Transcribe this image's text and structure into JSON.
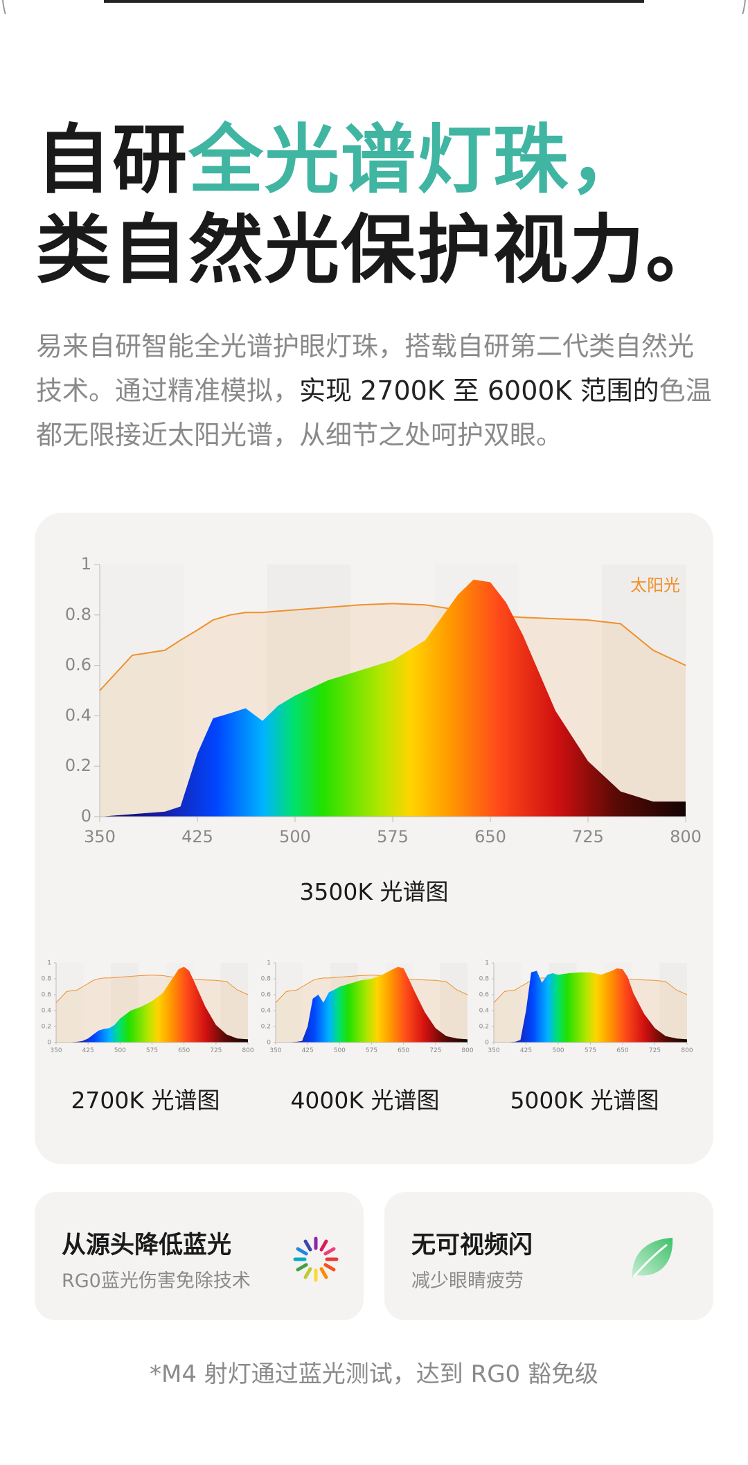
{
  "headline": {
    "line1": [
      "自研",
      "全光谱灯珠，"
    ],
    "line2": "类自然光保护视力。"
  },
  "description": [
    "易来自研智能全光谱护眼灯珠，搭载自研第二代类自然光技术。通过精准模拟，",
    "实现 2700K 至 6000K 范围的",
    "色温都无限接近太阳光谱，从细节之处呵护双眼。"
  ],
  "chart_data": [
    {
      "type": "area",
      "title": "3500K 光谱图",
      "x": [
        350,
        375,
        400,
        412,
        425,
        437,
        450,
        462,
        475,
        487,
        500,
        525,
        550,
        575,
        600,
        625,
        637,
        650,
        662,
        675,
        700,
        725,
        750,
        775,
        800
      ],
      "series": [
        {
          "name": "太阳光",
          "color": "#f0902c",
          "values": [
            0.5,
            0.64,
            0.66,
            0.7,
            0.74,
            0.78,
            0.8,
            0.81,
            0.81,
            0.815,
            0.82,
            0.83,
            0.84,
            0.845,
            0.84,
            0.82,
            0.81,
            0.8,
            0.795,
            0.79,
            0.785,
            0.78,
            0.765,
            0.66,
            0.6
          ]
        },
        {
          "values": [
            0,
            0.01,
            0.02,
            0.04,
            0.25,
            0.39,
            0.41,
            0.43,
            0.38,
            0.44,
            0.48,
            0.54,
            0.58,
            0.62,
            0.7,
            0.88,
            0.94,
            0.93,
            0.85,
            0.72,
            0.42,
            0.22,
            0.1,
            0.06,
            0.06
          ]
        }
      ],
      "xlim": [
        350,
        800
      ],
      "ylim": [
        0,
        1
      ],
      "xticks": [
        350,
        425,
        500,
        575,
        650,
        725,
        800
      ],
      "yticks": [
        0,
        0.2,
        0.4,
        0.6,
        0.8,
        1
      ]
    },
    {
      "type": "area",
      "title": "2700K 光谱图",
      "x": [
        350,
        375,
        400,
        412,
        425,
        437,
        450,
        462,
        475,
        487,
        500,
        525,
        550,
        575,
        600,
        625,
        637,
        650,
        662,
        675,
        700,
        725,
        750,
        775,
        800
      ],
      "series": [
        {
          "color": "#f0902c",
          "values": [
            0.5,
            0.64,
            0.66,
            0.7,
            0.74,
            0.78,
            0.8,
            0.81,
            0.81,
            0.815,
            0.82,
            0.83,
            0.84,
            0.845,
            0.84,
            0.82,
            0.81,
            0.8,
            0.795,
            0.79,
            0.785,
            0.78,
            0.765,
            0.66,
            0.6
          ]
        },
        {
          "values": [
            0,
            0,
            0.01,
            0.02,
            0.05,
            0.1,
            0.15,
            0.17,
            0.18,
            0.22,
            0.3,
            0.4,
            0.45,
            0.52,
            0.62,
            0.82,
            0.92,
            0.95,
            0.9,
            0.75,
            0.45,
            0.22,
            0.1,
            0.05,
            0.04
          ]
        }
      ],
      "xlim": [
        350,
        800
      ],
      "ylim": [
        0,
        1
      ],
      "xticks": [
        350,
        425,
        500,
        575,
        650,
        725,
        800
      ],
      "yticks": [
        0,
        0.2,
        0.4,
        0.6,
        0.8,
        1
      ]
    },
    {
      "type": "area",
      "title": "4000K 光谱图",
      "x": [
        350,
        375,
        400,
        412,
        425,
        437,
        450,
        462,
        475,
        487,
        500,
        525,
        550,
        575,
        600,
        625,
        637,
        650,
        662,
        675,
        700,
        725,
        750,
        775,
        800
      ],
      "series": [
        {
          "color": "#f0902c",
          "values": [
            0.5,
            0.64,
            0.66,
            0.7,
            0.74,
            0.78,
            0.8,
            0.81,
            0.81,
            0.815,
            0.82,
            0.83,
            0.84,
            0.845,
            0.84,
            0.82,
            0.81,
            0.8,
            0.795,
            0.79,
            0.785,
            0.78,
            0.765,
            0.66,
            0.6
          ]
        },
        {
          "values": [
            0,
            0,
            0.01,
            0.02,
            0.2,
            0.55,
            0.6,
            0.5,
            0.63,
            0.66,
            0.7,
            0.74,
            0.78,
            0.8,
            0.85,
            0.92,
            0.95,
            0.93,
            0.8,
            0.65,
            0.38,
            0.18,
            0.08,
            0.05,
            0.04
          ]
        }
      ],
      "xlim": [
        350,
        800
      ],
      "ylim": [
        0,
        1
      ],
      "xticks": [
        350,
        425,
        500,
        575,
        650,
        725,
        800
      ],
      "yticks": [
        0,
        0.2,
        0.4,
        0.6,
        0.8,
        1
      ]
    },
    {
      "type": "area",
      "title": "5000K 光谱图",
      "x": [
        350,
        375,
        400,
        412,
        425,
        437,
        450,
        462,
        475,
        487,
        500,
        525,
        550,
        575,
        600,
        625,
        637,
        650,
        662,
        675,
        700,
        725,
        750,
        775,
        800
      ],
      "series": [
        {
          "color": "#f0902c",
          "values": [
            0.5,
            0.64,
            0.66,
            0.7,
            0.74,
            0.78,
            0.8,
            0.81,
            0.81,
            0.815,
            0.82,
            0.83,
            0.84,
            0.845,
            0.84,
            0.82,
            0.81,
            0.8,
            0.795,
            0.79,
            0.785,
            0.78,
            0.765,
            0.66,
            0.6
          ]
        },
        {
          "values": [
            0,
            0,
            0.01,
            0.03,
            0.4,
            0.88,
            0.9,
            0.75,
            0.85,
            0.87,
            0.85,
            0.87,
            0.88,
            0.88,
            0.85,
            0.9,
            0.93,
            0.92,
            0.82,
            0.62,
            0.36,
            0.18,
            0.08,
            0.05,
            0.04
          ]
        }
      ],
      "xlim": [
        350,
        800
      ],
      "ylim": [
        0,
        1
      ],
      "xticks": [
        350,
        425,
        500,
        575,
        650,
        725,
        800
      ],
      "yticks": [
        0,
        0.2,
        0.4,
        0.6,
        0.8,
        1
      ]
    }
  ],
  "features": [
    {
      "title": "从源头降低蓝光",
      "subtitle": "RG0蓝光伤害免除技术"
    },
    {
      "title": "无可视频闪",
      "subtitle": "减少眼睛疲劳"
    }
  ],
  "footnote": "*M4 射灯通过蓝光测试，达到 RG0 豁免级"
}
